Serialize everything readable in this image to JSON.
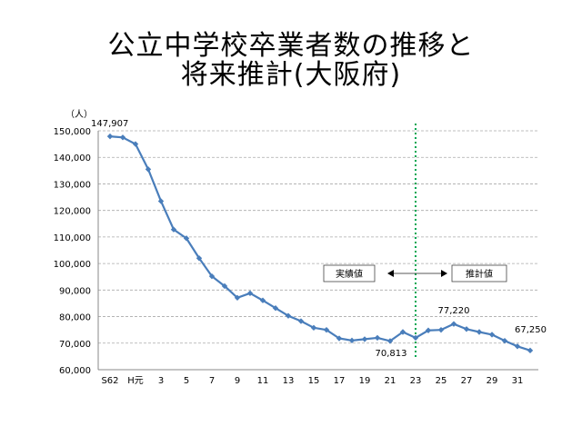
{
  "title_line1": "公立中学校卒業者数の推移と",
  "title_line2": "将来推計(大阪府)",
  "chart_data": {
    "type": "line",
    "ylabel": "（人）",
    "ylim": [
      60000,
      150000
    ],
    "yticks": [
      60000,
      70000,
      80000,
      90000,
      100000,
      110000,
      120000,
      130000,
      140000,
      150000
    ],
    "ytick_labels": [
      "60,000",
      "70,000",
      "80,000",
      "90,000",
      "100,000",
      "110,000",
      "120,000",
      "130,000",
      "140,000",
      "150,000"
    ],
    "x_tick_labels": [
      "S62",
      "H元",
      "3",
      "5",
      "7",
      "9",
      "11",
      "13",
      "15",
      "17",
      "19",
      "21",
      "23",
      "25",
      "27",
      "29",
      "31"
    ],
    "series_color": "#4a7ebb",
    "divider_color": "#00a651",
    "grid": true,
    "series": [
      {
        "x": [
          "S62",
          "S63",
          "H元",
          "H2",
          "H3",
          "H4",
          "H5",
          "H6",
          "H7",
          "H8",
          "H9",
          "H10",
          "H11",
          "H12",
          "H13",
          "H14",
          "H15",
          "H16",
          "H17",
          "H18",
          "H19",
          "H20",
          "H21",
          "H22",
          "H23",
          "H24",
          "H25",
          "H26",
          "H27",
          "H28",
          "H29",
          "H30",
          "H31",
          "H32"
        ],
        "values": [
          147907,
          147500,
          145000,
          135500,
          123500,
          112800,
          109500,
          102000,
          95200,
          91500,
          87100,
          88800,
          86100,
          83200,
          80300,
          78300,
          75800,
          75000,
          71800,
          71000,
          71500,
          72000,
          70813,
          74200,
          72000,
          74800,
          75000,
          77220,
          75300,
          74200,
          73200,
          70900,
          68800,
          67250
        ]
      }
    ],
    "annotations": {
      "first": "147,907",
      "low": "70,813",
      "peak": "77,220",
      "last": "67,250"
    },
    "legend_actual": "実績値",
    "legend_forecast": "推計値"
  }
}
